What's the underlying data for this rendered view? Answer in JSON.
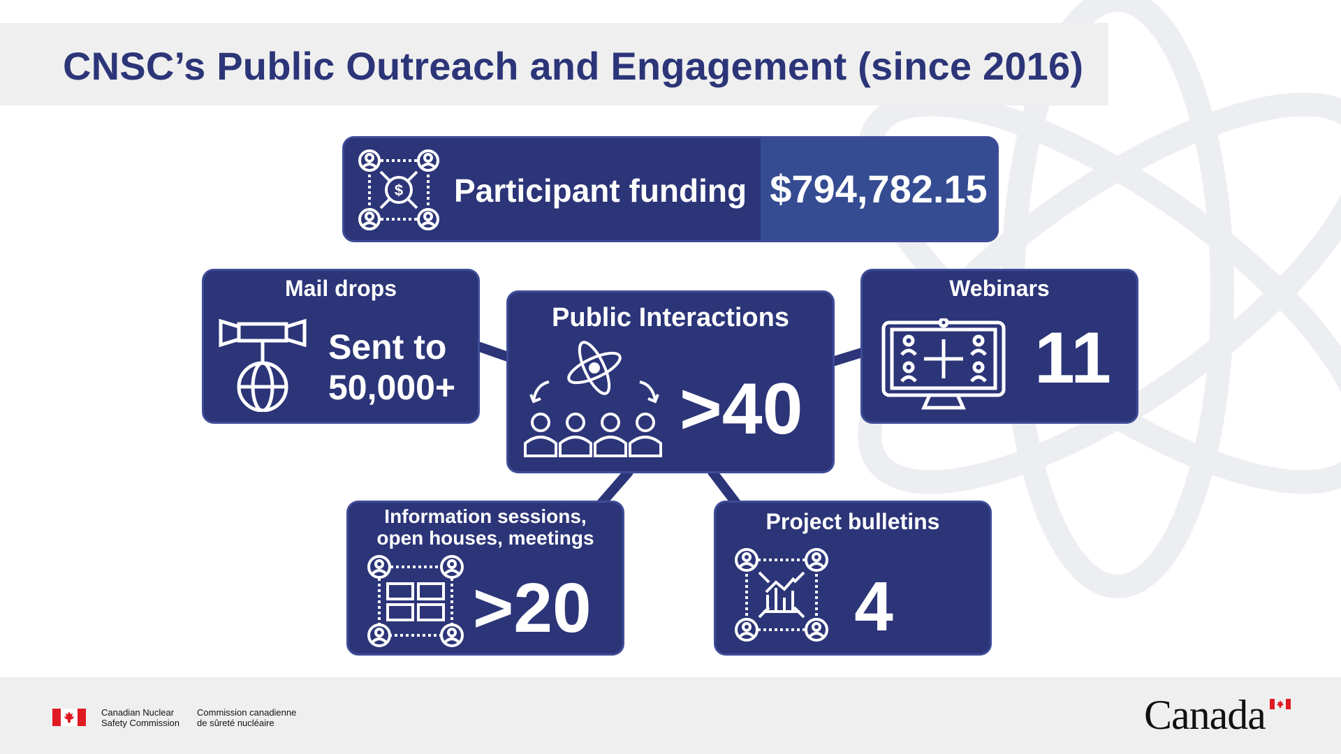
{
  "title": "CNSC’s Public Outreach and Engagement (since 2016)",
  "funding": {
    "label": "Participant funding",
    "value": "$794,782.15",
    "icon": "funding-network-icon"
  },
  "mail_drops": {
    "title": "Mail drops",
    "line1": "Sent to",
    "line2": "50,000+",
    "icon": "megaphone-globe-icon"
  },
  "public_interactions": {
    "title": "Public Interactions",
    "value": ">40",
    "icon": "atom-people-icon"
  },
  "webinars": {
    "title": "Webinars",
    "value": "11",
    "icon": "monitor-video-call-icon"
  },
  "info_sessions": {
    "title_line1": "Information sessions,",
    "title_line2": "open houses, meetings",
    "value": ">20",
    "icon": "people-chat-icon"
  },
  "bulletins": {
    "title": "Project bulletins",
    "value": "4",
    "icon": "people-chart-icon"
  },
  "footer": {
    "agency_en": "Canadian Nuclear\nSafety Commission",
    "agency_fr": "Commission canadienne\nde sûreté nucléaire",
    "wordmark": "Canada"
  },
  "colors": {
    "primary": "#2c3578",
    "accent": "#354c93",
    "band": "#efefef",
    "flag_red": "#e01a22"
  }
}
